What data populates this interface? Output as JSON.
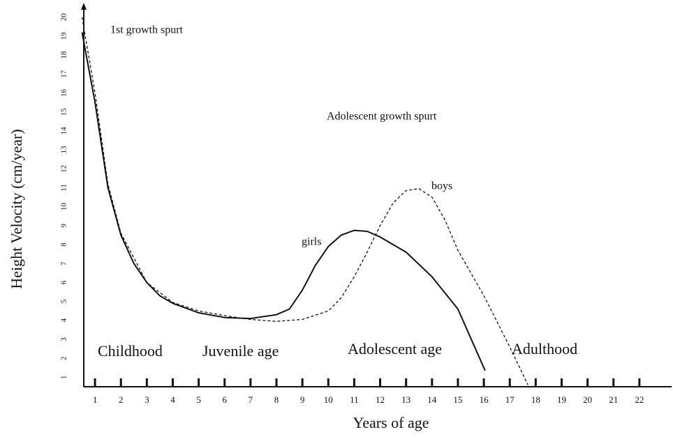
{
  "chart_data": {
    "type": "line",
    "xlabel": "Years of age",
    "ylabel": "Height Velocity (cm/year)",
    "xlim": [
      0.5,
      23
    ],
    "ylim": [
      0.5,
      20.5
    ],
    "xticks": [
      1,
      2,
      3,
      4,
      5,
      6,
      7,
      8,
      9,
      10,
      11,
      12,
      13,
      14,
      15,
      16,
      17,
      18,
      19,
      20,
      21,
      22
    ],
    "yticks": [
      1,
      2,
      3,
      4,
      5,
      6,
      7,
      8,
      9,
      10,
      11,
      12,
      13,
      14,
      15,
      16,
      17,
      18,
      19,
      20
    ],
    "annotations": [
      "1st growth spurt",
      "Adolescent growth spurt",
      "Childhood",
      "Juvenile age",
      "Adolescent age",
      "Adulthood"
    ],
    "series": [
      {
        "name": "girls",
        "color": "#111111",
        "dash": false,
        "x": [
          0.5,
          1,
          1.5,
          2,
          2.5,
          3,
          3.5,
          4,
          5,
          6,
          7,
          8,
          8.5,
          9,
          9.5,
          10,
          10.5,
          11,
          11.5,
          12,
          13,
          14,
          15,
          16.05
        ],
        "values": [
          19.2,
          15.5,
          11,
          8.5,
          7,
          6,
          5.3,
          4.9,
          4.4,
          4.15,
          4.1,
          4.3,
          4.6,
          5.6,
          6.9,
          7.9,
          8.5,
          8.75,
          8.7,
          8.4,
          7.6,
          6.3,
          4.6,
          1.35
        ]
      },
      {
        "name": "boys",
        "color": "#111111",
        "dash": true,
        "x": [
          0.5,
          1,
          1.5,
          2,
          3,
          4,
          5,
          6,
          7,
          8,
          9,
          10,
          10.5,
          11,
          11.5,
          12,
          12.5,
          13,
          13.5,
          14,
          14.5,
          15,
          16,
          17,
          17.7
        ],
        "values": [
          20,
          16,
          11.2,
          8.6,
          6,
          4.95,
          4.5,
          4.25,
          4.05,
          3.95,
          4.05,
          4.5,
          5.2,
          6.3,
          7.6,
          9,
          10.2,
          10.85,
          10.95,
          10.5,
          9.3,
          7.7,
          5.3,
          2.6,
          0.6
        ]
      }
    ]
  }
}
